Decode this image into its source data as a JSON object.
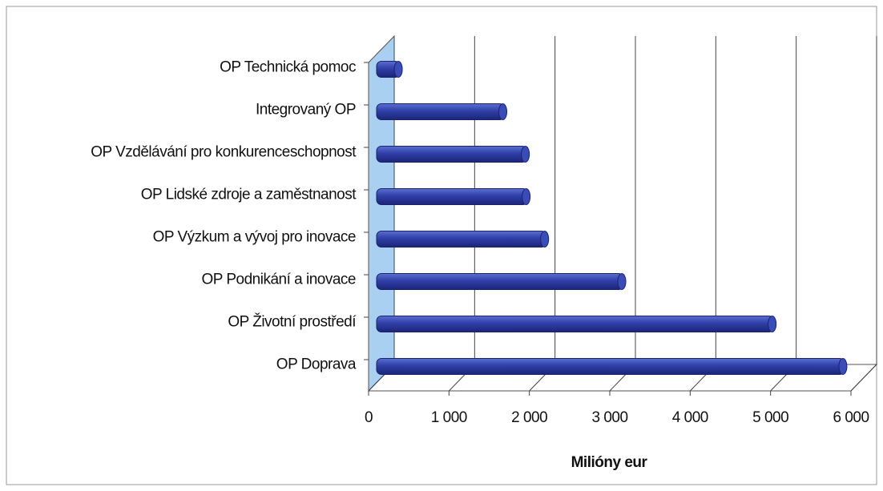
{
  "chart_data": {
    "type": "bar3d_horizontal",
    "categories": [
      "OP Technická pomoc",
      "Integrovaný OP",
      "OP Vzdělávání pro konkurenceschopnost",
      "OP Lidské zdroje a zaměstnanost",
      "OP Výzkum a vývoj pro inovace",
      "OP Podnikání a inovace",
      "OP Životní prostředí",
      "OP Doprava"
    ],
    "values": [
      250,
      1550,
      1830,
      1840,
      2070,
      3030,
      4900,
      5780
    ],
    "color": "#2f3fa8",
    "xlabel": "Milióny eur",
    "xlim": [
      0,
      6000
    ],
    "xticks": [
      0,
      {
        "value": 1000,
        "label": "1 000"
      },
      {
        "value": 2000,
        "label": "2 000"
      },
      {
        "value": 3000,
        "label": "3 000"
      },
      {
        "value": 4000,
        "label": "4 000"
      },
      {
        "value": 5000,
        "label": "5 000"
      },
      {
        "value": 6000,
        "label": "6 000"
      }
    ],
    "grid": true
  }
}
